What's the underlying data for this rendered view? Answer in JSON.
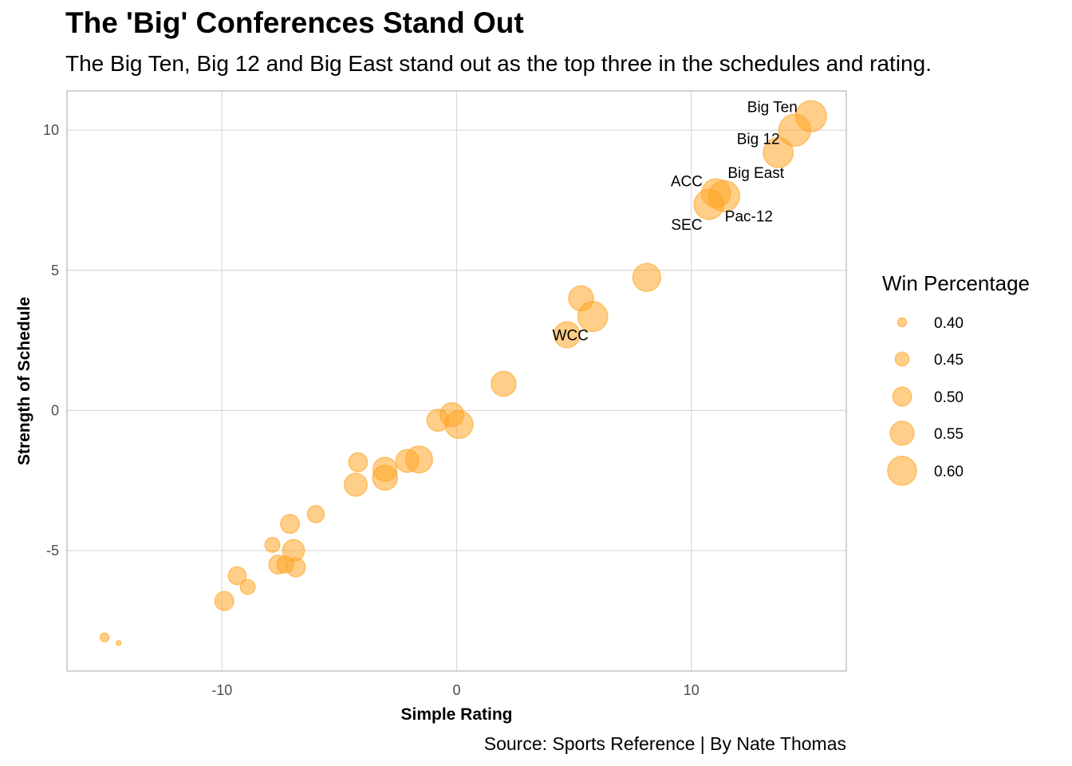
{
  "chart_data": {
    "type": "scatter",
    "title": "The 'Big' Conferences Stand Out",
    "subtitle": "The Big Ten, Big 12 and Big East stand out as the top three in the schedules and rating.",
    "xlabel": "Simple Rating",
    "ylabel": "Strength of Schedule",
    "xlim": [
      -16.6,
      16.6
    ],
    "ylim": [
      -9.3,
      11.4
    ],
    "x_ticks": [
      -10,
      0,
      10
    ],
    "x_tick_labels": [
      "-10",
      "0",
      "10"
    ],
    "y_ticks": [
      -5,
      0,
      5,
      10
    ],
    "y_tick_labels": [
      "-5",
      "0",
      "5",
      "10"
    ],
    "grid": true,
    "point_color": "#ffa526",
    "size_legend": {
      "title": "Win Percentage",
      "placement": "right",
      "values": [
        0.4,
        0.45,
        0.5,
        0.55,
        0.6
      ],
      "labels": [
        "0.40",
        "0.45",
        "0.50",
        "0.55",
        "0.60"
      ]
    },
    "caption": "Source: Sports Reference | By Nate Thomas",
    "points": [
      {
        "x": 15.1,
        "y": 10.5,
        "size": 0.62
      },
      {
        "x": 14.4,
        "y": 10.0,
        "size": 0.63
      },
      {
        "x": 13.7,
        "y": 9.2,
        "size": 0.61
      },
      {
        "x": 11.4,
        "y": 7.65,
        "size": 0.62
      },
      {
        "x": 11.05,
        "y": 7.75,
        "size": 0.6
      },
      {
        "x": 10.75,
        "y": 7.35,
        "size": 0.61
      },
      {
        "x": 8.1,
        "y": 4.75,
        "size": 0.59
      },
      {
        "x": 5.3,
        "y": 4.0,
        "size": 0.56
      },
      {
        "x": 5.8,
        "y": 3.35,
        "size": 0.61
      },
      {
        "x": 4.7,
        "y": 2.7,
        "size": 0.57
      },
      {
        "x": 2.0,
        "y": 0.95,
        "size": 0.56
      },
      {
        "x": -0.2,
        "y": -0.15,
        "size": 0.55
      },
      {
        "x": -0.8,
        "y": -0.35,
        "size": 0.53
      },
      {
        "x": 0.1,
        "y": -0.5,
        "size": 0.59
      },
      {
        "x": -1.6,
        "y": -1.75,
        "size": 0.58
      },
      {
        "x": -2.1,
        "y": -1.8,
        "size": 0.54
      },
      {
        "x": -3.05,
        "y": -2.1,
        "size": 0.55
      },
      {
        "x": -3.05,
        "y": -2.4,
        "size": 0.56
      },
      {
        "x": -4.2,
        "y": -1.85,
        "size": 0.5
      },
      {
        "x": -4.3,
        "y": -2.65,
        "size": 0.54
      },
      {
        "x": -6.0,
        "y": -3.7,
        "size": 0.48
      },
      {
        "x": -7.1,
        "y": -4.05,
        "size": 0.5
      },
      {
        "x": -7.85,
        "y": -4.8,
        "size": 0.46
      },
      {
        "x": -6.95,
        "y": -5.0,
        "size": 0.53
      },
      {
        "x": -7.6,
        "y": -5.5,
        "size": 0.5
      },
      {
        "x": -7.3,
        "y": -5.5,
        "size": 0.48
      },
      {
        "x": -6.85,
        "y": -5.6,
        "size": 0.5
      },
      {
        "x": -9.35,
        "y": -5.9,
        "size": 0.49
      },
      {
        "x": -8.9,
        "y": -6.3,
        "size": 0.46
      },
      {
        "x": -9.9,
        "y": -6.8,
        "size": 0.5
      },
      {
        "x": -15.0,
        "y": -8.1,
        "size": 0.4
      },
      {
        "x": -14.4,
        "y": -8.3,
        "size": 0.36
      }
    ],
    "annotations": [
      {
        "text": "Big Ten",
        "x": 13.45,
        "y": 10.85
      },
      {
        "text": "Big 12",
        "x": 12.85,
        "y": 9.7
      },
      {
        "text": "Big East",
        "x": 12.75,
        "y": 8.5
      },
      {
        "text": "ACC",
        "x": 9.8,
        "y": 8.2
      },
      {
        "text": "Pac-12",
        "x": 12.45,
        "y": 6.95
      },
      {
        "text": "SEC",
        "x": 9.8,
        "y": 6.65
      },
      {
        "text": "WCC",
        "x": 4.85,
        "y": 2.7
      }
    ]
  }
}
